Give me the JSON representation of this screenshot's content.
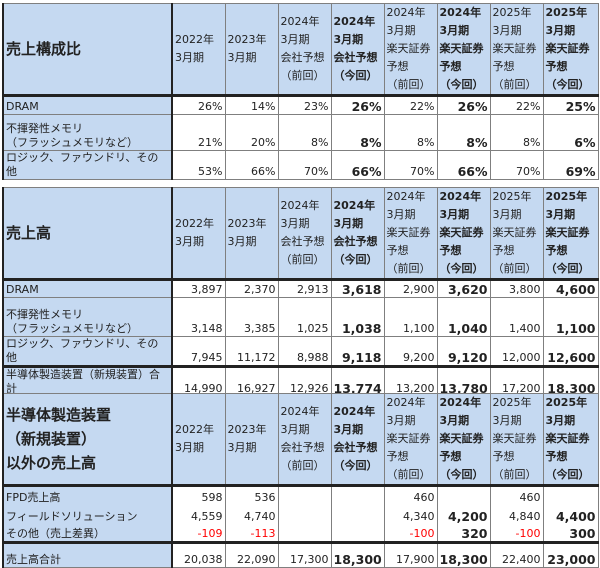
{
  "colors": {
    "header_bg": "#c5d9f1",
    "negative": "#ff0000"
  },
  "columns": [
    {
      "label": "2022年\n3月期",
      "bold": false
    },
    {
      "label": "2023年\n3月期",
      "bold": false
    },
    {
      "label": "2024年\n3月期\n会社予想\n（前回）",
      "bold": false
    },
    {
      "label": "2024年\n3月期\n会社予想\n（今回）",
      "bold": true
    },
    {
      "label": "2024年\n3月期\n楽天証券\n予想\n（前回）",
      "bold": false
    },
    {
      "label": "2024年\n3月期\n楽天証券\n予想\n（今回）",
      "bold": true
    },
    {
      "label": "2025年\n3月期\n楽天証券\n予想\n（前回）",
      "bold": false
    },
    {
      "label": "2025年\n3月期\n楽天証券\n予想\n（今回）",
      "bold": true
    }
  ],
  "tables": [
    {
      "title": "売上構成比",
      "rows": [
        {
          "label": "DRAM",
          "values": [
            "26%",
            "14%",
            "23%",
            "26%",
            "22%",
            "26%",
            "22%",
            "25%"
          ]
        },
        {
          "label": "不揮発性メモリ\n（フラッシュメモリなど）",
          "values": [
            "21%",
            "20%",
            "8%",
            "8%",
            "8%",
            "8%",
            "8%",
            "6%"
          ]
        },
        {
          "label": "ロジック、ファウンドリ、その他",
          "values": [
            "53%",
            "66%",
            "70%",
            "66%",
            "70%",
            "66%",
            "70%",
            "69%"
          ]
        }
      ]
    },
    {
      "title": "売上高",
      "rows": [
        {
          "label": "DRAM",
          "values": [
            "3,897",
            "2,370",
            "2,913",
            "3,618",
            "2,900",
            "3,620",
            "3,800",
            "4,600"
          ]
        },
        {
          "label": "不揮発性メモリ\n（フラッシュメモリなど）",
          "values": [
            "3,148",
            "3,385",
            "1,025",
            "1,038",
            "1,100",
            "1,040",
            "1,400",
            "1,100"
          ]
        },
        {
          "label": "ロジック、ファウンドリ、その他",
          "values": [
            "7,945",
            "11,172",
            "8,988",
            "9,118",
            "9,200",
            "9,120",
            "12,000",
            "12,600"
          ]
        },
        {
          "label": "半導体製造装置（新規装置）合計",
          "values": [
            "14,990",
            "16,927",
            "12,926",
            "13,774",
            "13,200",
            "13,780",
            "17,200",
            "18,300"
          ],
          "total": true
        }
      ]
    },
    {
      "title": "半導体製造装置\n（新規装置）\n以外の売上高",
      "rows": [
        {
          "label": "FPD売上高",
          "values": [
            "598",
            "536",
            "",
            "",
            "460",
            "",
            "460",
            ""
          ]
        },
        {
          "label": "フィールドソリューション",
          "values": [
            "4,559",
            "4,740",
            "",
            "",
            "4,340",
            "4,200",
            "4,840",
            "4,400"
          ]
        },
        {
          "label": "その他（売上差異）",
          "values": [
            "-109",
            "-113",
            "",
            "",
            "-100",
            "320",
            "-100",
            "300"
          ]
        },
        {
          "label": "売上高合計",
          "values": [
            "20,038",
            "22,090",
            "17,300",
            "18,300",
            "17,900",
            "18,300",
            "22,400",
            "23,000"
          ],
          "total": true
        }
      ]
    }
  ]
}
